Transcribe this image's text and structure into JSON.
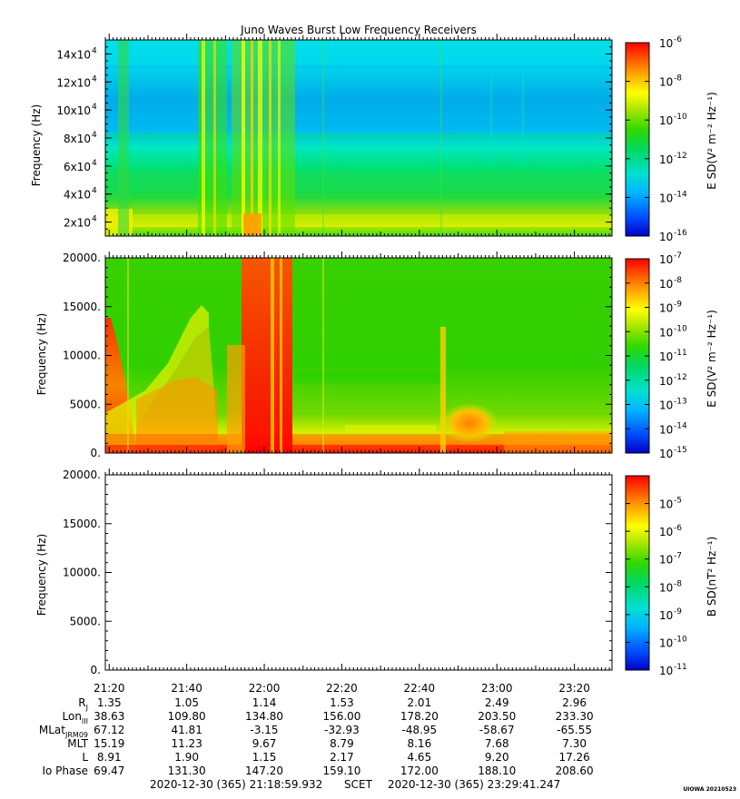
{
  "chart_data": [
    {
      "type": "heatmap",
      "title": "Juno Waves Burst Low Frequency Receivers",
      "ylabel": "Frequency (Hz)",
      "ylim": [
        10000,
        150000
      ],
      "y_ticks": [
        {
          "value": 20000,
          "mant": "2x10",
          "exp": "4"
        },
        {
          "value": 40000,
          "mant": "4x10",
          "exp": "4"
        },
        {
          "value": 60000,
          "mant": "6x10",
          "exp": "4"
        },
        {
          "value": 80000,
          "mant": "8x10",
          "exp": "4"
        },
        {
          "value": 100000,
          "mant": "10x10",
          "exp": "4"
        },
        {
          "value": 120000,
          "mant": "12x10",
          "exp": "4"
        },
        {
          "value": 140000,
          "mant": "14x10",
          "exp": "4"
        }
      ],
      "colorbar": {
        "label": "E SD(V² m⁻² Hz⁻¹)",
        "scale": "log",
        "range": [
          -16,
          -6
        ],
        "tick_exponents": [
          "-6",
          "-8",
          "-10",
          "-12",
          "-14",
          "-16"
        ]
      }
    },
    {
      "type": "heatmap",
      "ylabel": "Frequency (Hz)",
      "ylim": [
        0,
        20000
      ],
      "y_ticks": [
        "0.",
        "5000.",
        "10000.",
        "15000.",
        "20000."
      ],
      "y_tick_values": [
        0,
        5000,
        10000,
        15000,
        20000
      ],
      "colorbar": {
        "label": "E SD(V² m⁻² Hz⁻¹)",
        "scale": "log",
        "range": [
          -15,
          -7
        ],
        "tick_exponents": [
          "-7",
          "-8",
          "-9",
          "-10",
          "-11",
          "-12",
          "-13",
          "-14",
          "-15"
        ]
      }
    },
    {
      "type": "heatmap",
      "ylabel": "Frequency (Hz)",
      "ylim": [
        0,
        20000
      ],
      "y_ticks": [
        "0.",
        "5000.",
        "10000.",
        "15000.",
        "20000."
      ],
      "y_tick_values": [
        0,
        5000,
        10000,
        15000,
        20000
      ],
      "colorbar": {
        "label": "B SD(nT² Hz⁻¹)",
        "scale": "log",
        "range": [
          -11,
          -4
        ],
        "tick_exponents": [
          "-5",
          "-6",
          "-7",
          "-8",
          "-9",
          "-10",
          "-11"
        ]
      }
    }
  ],
  "time_axis": {
    "start_minute": 1278.9988,
    "end_minute": 1409.6874,
    "tick_minutes": [
      1280,
      1300,
      1320,
      1340,
      1360,
      1380,
      1400
    ],
    "tick_labels": [
      "21:20",
      "21:40",
      "22:00",
      "22:20",
      "22:40",
      "23:00",
      "23:20"
    ]
  },
  "ephemeris": [
    {
      "label": "R",
      "sub": "J",
      "values": [
        "1.35",
        "1.05",
        "1.14",
        "1.53",
        "2.01",
        "2.49",
        "2.96"
      ]
    },
    {
      "label": "Lon",
      "sub": "III",
      "values": [
        "38.63",
        "109.80",
        "134.80",
        "156.00",
        "178.20",
        "203.50",
        "233.30"
      ]
    },
    {
      "label": "MLat",
      "sub": "JRM09",
      "values": [
        "67.12",
        "41.81",
        "-3.15",
        "-32.93",
        "-48.95",
        "-58.67",
        "-65.55"
      ]
    },
    {
      "label": "MLT",
      "sub": "",
      "values": [
        "15.19",
        "11.23",
        "9.67",
        "8.79",
        "8.16",
        "7.68",
        "7.30"
      ]
    },
    {
      "label": "L",
      "sub": "",
      "values": [
        "8.91",
        "1.90",
        "1.15",
        "2.17",
        "4.65",
        "9.20",
        "17.26"
      ]
    },
    {
      "label": "Io Phase",
      "sub": "",
      "values": [
        "69.47",
        "131.30",
        "147.20",
        "159.10",
        "172.00",
        "188.10",
        "208.60"
      ]
    }
  ],
  "footer": {
    "start": "2020-12-30 (365) 21:18:59.932",
    "scet": "SCET",
    "end": "2020-12-30 (365) 23:29:41.247"
  },
  "stamp": "UIOWA 20210523",
  "colors": {
    "spectrum": [
      "#0000c8",
      "#0060ff",
      "#00c8ff",
      "#00e8b0",
      "#00d200",
      "#a0e000",
      "#ffff00",
      "#ff9000",
      "#ff0000"
    ],
    "background": "#ffffff"
  }
}
